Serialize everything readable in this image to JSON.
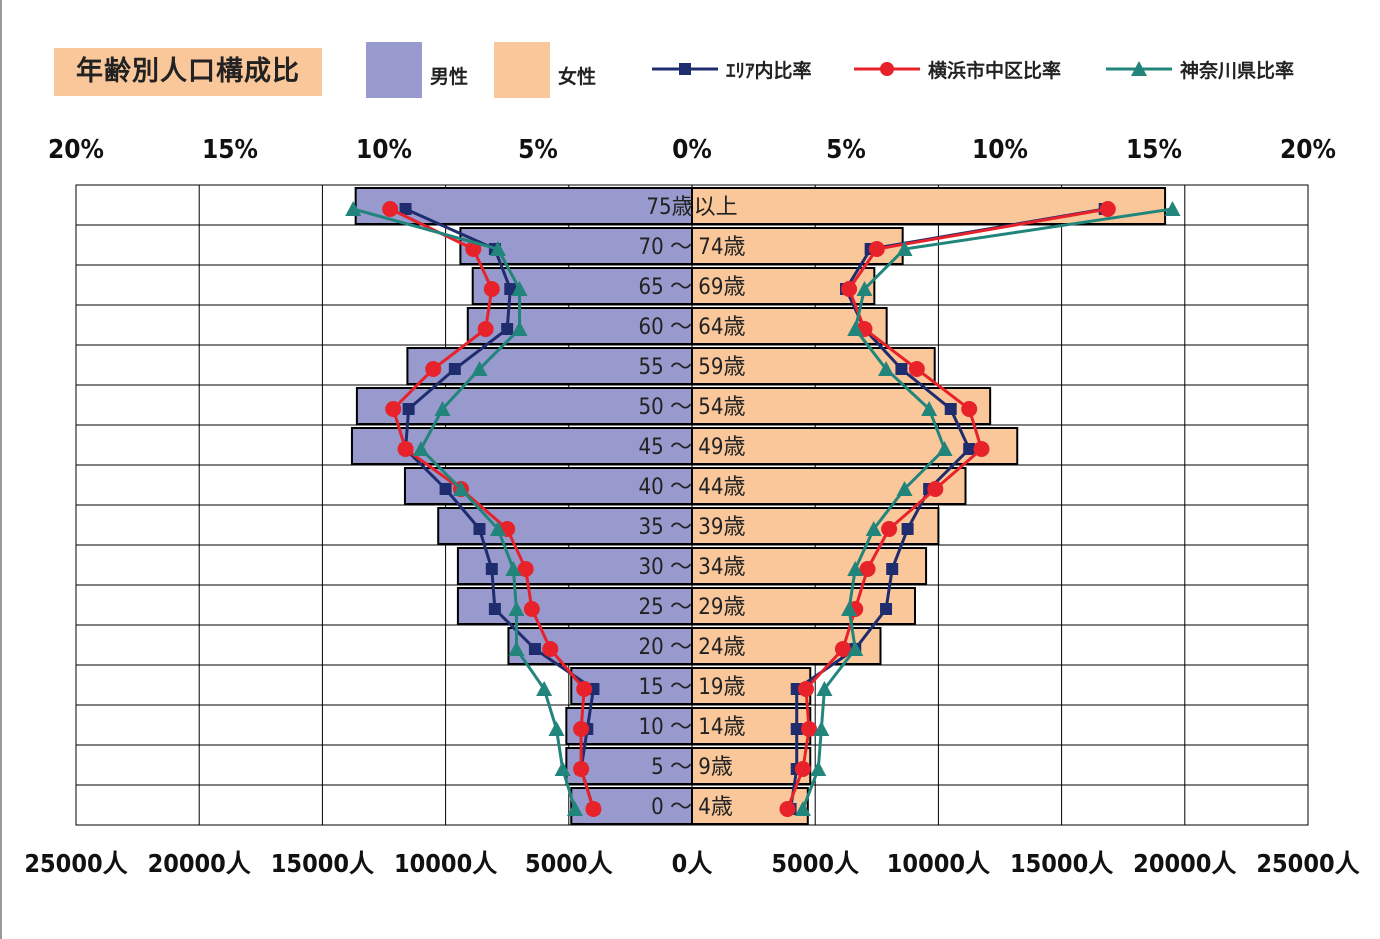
{
  "title": "年齢別人口構成比",
  "legend": {
    "male": "男性",
    "female": "女性",
    "series_area": "ｴﾘｱ内比率",
    "series_naka": "横浜市中区比率",
    "series_kanagawa": "神奈川県比率"
  },
  "colors": {
    "male_bar": "#9899cc",
    "female_bar": "#f9c799",
    "title_bg": "#f9c799",
    "area_line": "#1f2d6e",
    "naka_line": "#e8222a",
    "kanagawa_line": "#21857c"
  },
  "chart_data": {
    "type": "bar",
    "orientation": "population-pyramid",
    "categories": [
      "75歳以上",
      "70 ～ 74歳",
      "65 ～ 69歳",
      "60 ～ 64歳",
      "55 ～ 59歳",
      "50 ～ 54歳",
      "45 ～ 49歳",
      "40 ～ 44歳",
      "35 ～ 39歳",
      "30 ～ 34歳",
      "25 ～ 29歳",
      "20 ～ 24歳",
      "15 ～ 19歳",
      "10 ～ 14歳",
      "5 ～ 9歳",
      "0 ～ 4歳"
    ],
    "population_axis": {
      "unit": "人",
      "range": [
        0,
        25000
      ],
      "tick_labels": [
        "25000人",
        "20000人",
        "15000人",
        "10000人",
        "5000人",
        "0人",
        "5000人",
        "10000人",
        "15000人",
        "20000人",
        "25000人"
      ]
    },
    "percent_axis": {
      "unit": "%",
      "range": [
        0,
        20
      ],
      "tick_labels": [
        "20%",
        "15%",
        "10%",
        "5%",
        "0%",
        "5%",
        "10%",
        "15%",
        "20%"
      ]
    },
    "bars": {
      "male": [
        13650,
        9400,
        8900,
        9100,
        11550,
        13600,
        13800,
        11650,
        10300,
        9500,
        9500,
        7450,
        4900,
        5100,
        5100,
        4900
      ],
      "female": [
        19200,
        8550,
        7400,
        7900,
        9850,
        12100,
        13200,
        11100,
        10000,
        9500,
        9050,
        7650,
        4800,
        4800,
        4800,
        4700
      ]
    },
    "series": [
      {
        "name": "ｴﾘｱ内比率",
        "male": [
          9.3,
          6.4,
          5.9,
          6.0,
          7.7,
          9.2,
          9.3,
          8.0,
          6.9,
          6.5,
          6.4,
          5.1,
          3.2,
          3.4,
          3.6,
          3.2
        ],
        "female": [
          13.4,
          5.8,
          5.0,
          5.6,
          6.8,
          8.4,
          9.0,
          7.7,
          7.0,
          6.5,
          6.3,
          5.3,
          3.4,
          3.4,
          3.4,
          3.2
        ]
      },
      {
        "name": "横浜市中区比率",
        "male": [
          9.8,
          7.1,
          6.5,
          6.7,
          8.4,
          9.7,
          9.3,
          7.5,
          6.0,
          5.4,
          5.2,
          4.6,
          3.5,
          3.6,
          3.6,
          3.2
        ],
        "female": [
          13.5,
          6.0,
          5.1,
          5.6,
          7.3,
          9.0,
          9.4,
          7.9,
          6.4,
          5.7,
          5.3,
          4.9,
          3.7,
          3.8,
          3.6,
          3.1
        ]
      },
      {
        "name": "神奈川県比率",
        "male": [
          11.0,
          6.3,
          5.6,
          5.6,
          6.9,
          8.1,
          8.8,
          7.5,
          6.3,
          5.8,
          5.7,
          5.7,
          4.8,
          4.4,
          4.2,
          3.8
        ],
        "female": [
          15.6,
          6.9,
          5.6,
          5.3,
          6.3,
          7.7,
          8.2,
          6.9,
          5.9,
          5.3,
          5.1,
          5.3,
          4.3,
          4.2,
          4.1,
          3.6
        ]
      }
    ],
    "grid": true
  }
}
